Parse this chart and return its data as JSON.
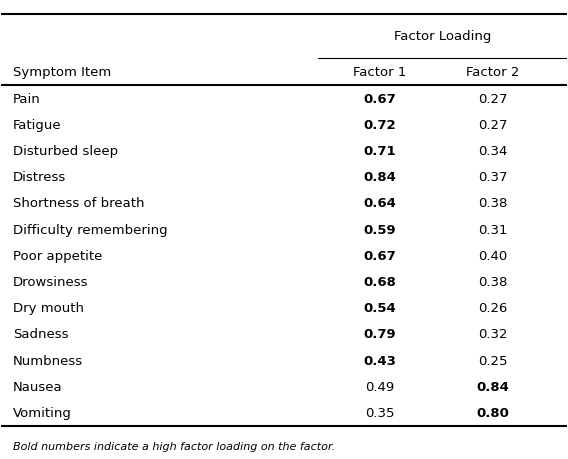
{
  "title_top": "Factor Loading",
  "col_headers": [
    "Symptom Item",
    "Factor 1",
    "Factor 2"
  ],
  "rows": [
    {
      "symptom": "Pain",
      "f1": "0.67",
      "f2": "0.27",
      "f1_bold": true,
      "f2_bold": false
    },
    {
      "symptom": "Fatigue",
      "f1": "0.72",
      "f2": "0.27",
      "f1_bold": true,
      "f2_bold": false
    },
    {
      "symptom": "Disturbed sleep",
      "f1": "0.71",
      "f2": "0.34",
      "f1_bold": true,
      "f2_bold": false
    },
    {
      "symptom": "Distress",
      "f1": "0.84",
      "f2": "0.37",
      "f1_bold": true,
      "f2_bold": false
    },
    {
      "symptom": "Shortness of breath",
      "f1": "0.64",
      "f2": "0.38",
      "f1_bold": true,
      "f2_bold": false
    },
    {
      "symptom": "Difficulty remembering",
      "f1": "0.59",
      "f2": "0.31",
      "f1_bold": true,
      "f2_bold": false
    },
    {
      "symptom": "Poor appetite",
      "f1": "0.67",
      "f2": "0.40",
      "f1_bold": true,
      "f2_bold": false
    },
    {
      "symptom": "Drowsiness",
      "f1": "0.68",
      "f2": "0.38",
      "f1_bold": true,
      "f2_bold": false
    },
    {
      "symptom": "Dry mouth",
      "f1": "0.54",
      "f2": "0.26",
      "f1_bold": true,
      "f2_bold": false
    },
    {
      "symptom": "Sadness",
      "f1": "0.79",
      "f2": "0.32",
      "f1_bold": true,
      "f2_bold": false
    },
    {
      "symptom": "Numbness",
      "f1": "0.43",
      "f2": "0.25",
      "f1_bold": true,
      "f2_bold": false
    },
    {
      "symptom": "Nausea",
      "f1": "0.49",
      "f2": "0.84",
      "f1_bold": false,
      "f2_bold": true
    },
    {
      "symptom": "Vomiting",
      "f1": "0.35",
      "f2": "0.80",
      "f1_bold": false,
      "f2_bold": true
    }
  ],
  "footnote": "Bold numbers indicate a high factor loading on the factor.",
  "bg_color": "#ffffff",
  "text_color": "#000000",
  "font_size": 9.5,
  "header_font_size": 9.5
}
